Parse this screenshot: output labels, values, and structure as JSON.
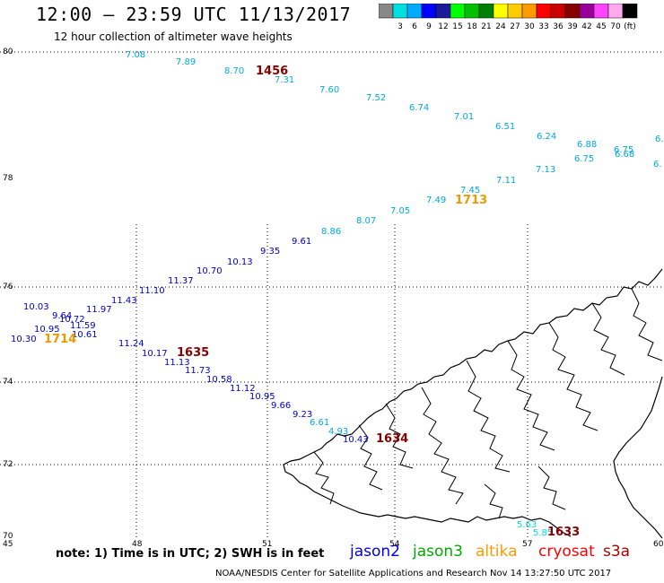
{
  "title": "12:00 — 23:59 UTC 11/13/2017",
  "subtitle": "12 hour collection of altimeter wave heights",
  "legend": {
    "swatches": [
      {
        "color": "#888888",
        "label": ""
      },
      {
        "color": "#00e0e0",
        "label": "3"
      },
      {
        "color": "#00aaff",
        "label": "6"
      },
      {
        "color": "#0000ff",
        "label": "9"
      },
      {
        "color": "#1a1a9a",
        "label": "12"
      },
      {
        "color": "#00ff00",
        "label": "15"
      },
      {
        "color": "#00c000",
        "label": "18"
      },
      {
        "color": "#008000",
        "label": "21"
      },
      {
        "color": "#ffff00",
        "label": "24"
      },
      {
        "color": "#ffcc00",
        "label": "27"
      },
      {
        "color": "#ff9900",
        "label": "30"
      },
      {
        "color": "#ff0000",
        "label": "33"
      },
      {
        "color": "#cc0000",
        "label": "36"
      },
      {
        "color": "#880000",
        "label": "39"
      },
      {
        "color": "#990099",
        "label": "42"
      },
      {
        "color": "#ff44ff",
        "label": "45"
      },
      {
        "color": "#ffaaee",
        "label": "70"
      },
      {
        "color": "#000000",
        "label": "(ft)"
      }
    ]
  },
  "axes": {
    "lat_ticks": [
      "80",
      "78",
      "76",
      "74",
      "72",
      "70"
    ],
    "lon_ticks": [
      "45",
      "48",
      "51",
      "54",
      "57",
      "60"
    ]
  },
  "measurements": [
    {
      "t": "7.08",
      "c": "#00aadd"
    },
    {
      "t": "7.89",
      "c": "#00aadd"
    },
    {
      "t": "8.70",
      "c": "#00aadd"
    },
    {
      "t": "7.31",
      "c": "#00aadd"
    },
    {
      "t": "7.60",
      "c": "#00aadd"
    },
    {
      "t": "7.52",
      "c": "#00aadd"
    },
    {
      "t": "6.74",
      "c": "#00aadd"
    },
    {
      "t": "7.01",
      "c": "#00aadd"
    },
    {
      "t": "6.51",
      "c": "#00aadd"
    },
    {
      "t": "6.24",
      "c": "#00aadd"
    },
    {
      "t": "6.88",
      "c": "#00aadd"
    },
    {
      "t": "6.75",
      "c": "#00aadd"
    },
    {
      "t": "6.75",
      "c": "#00aadd"
    },
    {
      "t": "6.68",
      "c": "#00aadd"
    },
    {
      "t": "6.",
      "c": "#00aadd"
    },
    {
      "t": "6.",
      "c": "#00aadd"
    },
    {
      "t": "7.13",
      "c": "#00aadd"
    },
    {
      "t": "7.11",
      "c": "#00aadd"
    },
    {
      "t": "7.45",
      "c": "#00aadd"
    },
    {
      "t": "7.49",
      "c": "#00aadd"
    },
    {
      "t": "7.05",
      "c": "#00aadd"
    },
    {
      "t": "8.07",
      "c": "#00aadd"
    },
    {
      "t": "8.86",
      "c": "#00aadd"
    },
    {
      "t": "9.61",
      "c": "#0000cc"
    },
    {
      "t": "9.35",
      "c": "#0000cc"
    },
    {
      "t": "10.13",
      "c": "#0000cc"
    },
    {
      "t": "10.70",
      "c": "#0000cc"
    },
    {
      "t": "11.37",
      "c": "#0000cc"
    },
    {
      "t": "11.10",
      "c": "#0000cc"
    },
    {
      "t": "11.43",
      "c": "#0000cc"
    },
    {
      "t": "11.97",
      "c": "#0000cc"
    },
    {
      "t": "10.03",
      "c": "#0000cc"
    },
    {
      "t": "9.64",
      "c": "#0000cc"
    },
    {
      "t": "10.72",
      "c": "#0000cc"
    },
    {
      "t": "10.95",
      "c": "#0000cc"
    },
    {
      "t": "11.59",
      "c": "#0000cc"
    },
    {
      "t": "10.30",
      "c": "#0000cc"
    },
    {
      "t": "10.61",
      "c": "#0000cc"
    },
    {
      "t": "11.24",
      "c": "#0000cc"
    },
    {
      "t": "10.17",
      "c": "#0000cc"
    },
    {
      "t": "11.13",
      "c": "#0000cc"
    },
    {
      "t": "11.73",
      "c": "#0000cc"
    },
    {
      "t": "10.58",
      "c": "#0000cc"
    },
    {
      "t": "11.12",
      "c": "#0000cc"
    },
    {
      "t": "10.95",
      "c": "#0000cc"
    },
    {
      "t": "9.66",
      "c": "#0000cc"
    },
    {
      "t": "9.23",
      "c": "#0000cc"
    },
    {
      "t": "6.61",
      "c": "#00aadd"
    },
    {
      "t": "4.93",
      "c": "#00aadd"
    },
    {
      "t": "10.43",
      "c": "#0000cc"
    },
    {
      "t": "5.63",
      "c": "#00dddd"
    },
    {
      "t": "5.85",
      "c": "#00dddd"
    }
  ],
  "time_labels": [
    {
      "t": "1456",
      "c": "#880000"
    },
    {
      "t": "1713",
      "c": "#ee9900"
    },
    {
      "t": "1714",
      "c": "#ee9900"
    },
    {
      "t": "1635",
      "c": "#880000"
    },
    {
      "t": "1634",
      "c": "#880000"
    },
    {
      "t": "1633",
      "c": "#880000"
    }
  ],
  "footer": {
    "note": "note:  1) Time is in UTC;  2) SWH is in feet",
    "satellites": [
      {
        "name": "jason2",
        "color": "#0000ee"
      },
      {
        "name": "jason3",
        "color": "#00aa00"
      },
      {
        "name": "altika",
        "color": "#ff9900"
      },
      {
        "name": "cryosat",
        "color": "#ff0000"
      },
      {
        "name": "s3a",
        "color": "#aa0000"
      }
    ],
    "credit": "NOAA/NESDIS Center for Satellite Applications and Research    Nov 14 13:27:50 UTC 2017"
  }
}
